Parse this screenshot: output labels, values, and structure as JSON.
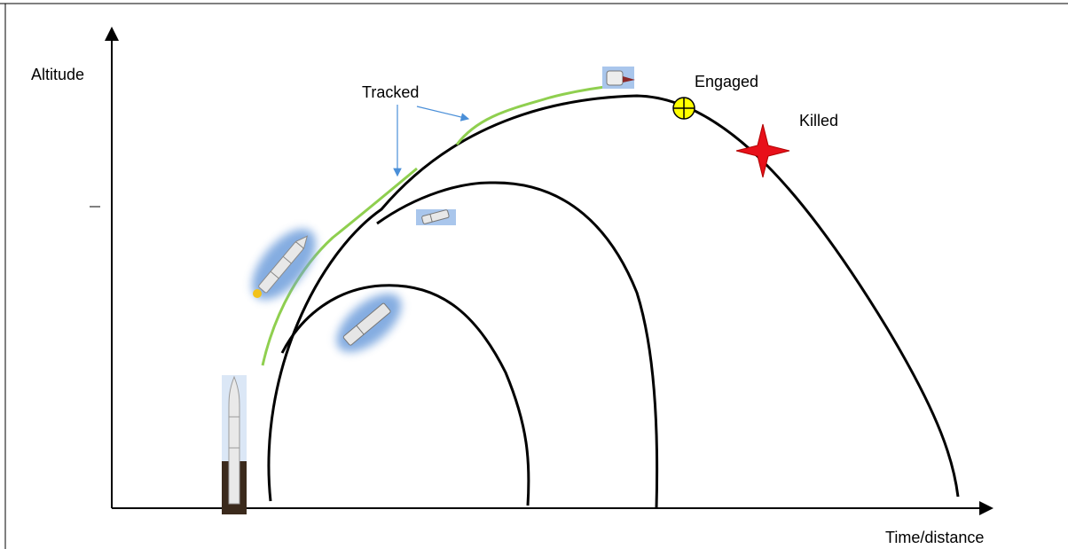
{
  "labels": {
    "y_axis": "Altitude",
    "x_axis": "Time/distance",
    "tracked": "Tracked",
    "engaged": "Engaged",
    "killed": "Killed"
  },
  "colors": {
    "axis": "#000000",
    "trajectory": "#000000",
    "track_line": "#8fcf4f",
    "arrow": "#4a8fd8",
    "engaged_marker": "#ffff00",
    "killed_marker": "#e8101a",
    "missile_glow": "#6f9fdc"
  },
  "icons": [
    "launch-vehicle-icon",
    "boost-stage-icon",
    "dropped-stage-icon",
    "small-stage-icon",
    "warhead-icon",
    "engaged-marker-icon",
    "killed-star-icon"
  ]
}
